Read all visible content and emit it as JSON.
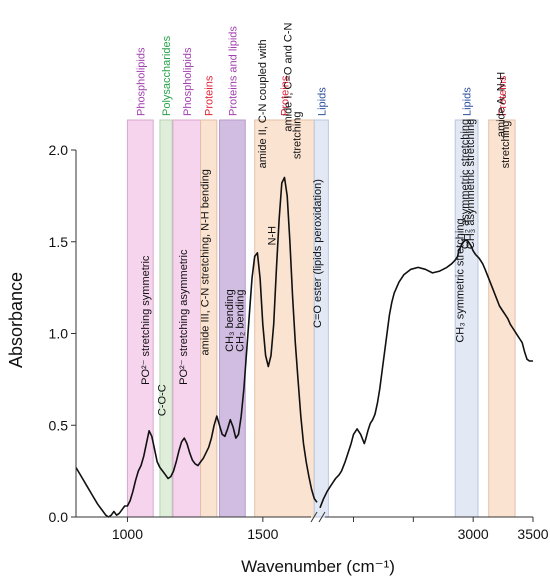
{
  "chart_data": {
    "type": "line",
    "title": "",
    "xlabel": "Wavenumber (cm⁻¹)",
    "ylabel": "Absorbance",
    "axis_break": [
      1700,
      1720
    ],
    "x_ticks": [
      1000,
      1500,
      2000,
      2500,
      3000,
      3500
    ],
    "x_ticks_labeled": [
      1000,
      1500,
      3000,
      3500
    ],
    "y_ticks": [
      0.0,
      0.5,
      1.0,
      1.5,
      2.0
    ],
    "y_tick_labels": [
      "0.0",
      "0.5",
      "1.0",
      "1.5",
      "2.0"
    ],
    "ylim": [
      0,
      2.0
    ],
    "segments": [
      {
        "xlim": [
          810,
          1700
        ],
        "x": [
          810,
          830,
          850,
          870,
          890,
          910,
          920,
          930,
          940,
          950,
          960,
          970,
          980,
          990,
          1000,
          1010,
          1020,
          1030,
          1040,
          1050,
          1060,
          1070,
          1080,
          1090,
          1100,
          1110,
          1120,
          1130,
          1140,
          1150,
          1160,
          1170,
          1180,
          1190,
          1200,
          1210,
          1220,
          1230,
          1240,
          1250,
          1260,
          1270,
          1280,
          1290,
          1300,
          1310,
          1320,
          1330,
          1340,
          1350,
          1360,
          1370,
          1380,
          1390,
          1400,
          1410,
          1420,
          1430,
          1440,
          1450,
          1460,
          1470,
          1480,
          1490,
          1500,
          1510,
          1520,
          1530,
          1540,
          1550,
          1560,
          1570,
          1580,
          1590,
          1600,
          1610,
          1620,
          1630,
          1640,
          1650,
          1660,
          1670,
          1680,
          1690,
          1700
        ],
        "y": [
          0.27,
          0.22,
          0.17,
          0.12,
          0.07,
          0.03,
          0.01,
          0.0,
          0.01,
          0.03,
          0.01,
          0.02,
          0.04,
          0.06,
          0.06,
          0.09,
          0.14,
          0.2,
          0.25,
          0.28,
          0.33,
          0.4,
          0.47,
          0.44,
          0.37,
          0.3,
          0.27,
          0.25,
          0.23,
          0.21,
          0.22,
          0.25,
          0.3,
          0.36,
          0.41,
          0.43,
          0.4,
          0.35,
          0.31,
          0.29,
          0.28,
          0.3,
          0.32,
          0.35,
          0.38,
          0.43,
          0.5,
          0.55,
          0.5,
          0.45,
          0.44,
          0.48,
          0.53,
          0.49,
          0.43,
          0.45,
          0.55,
          0.7,
          0.9,
          1.1,
          1.3,
          1.42,
          1.44,
          1.3,
          1.05,
          0.88,
          0.82,
          0.88,
          1.05,
          1.35,
          1.62,
          1.82,
          1.85,
          1.75,
          1.5,
          1.2,
          0.95,
          0.75,
          0.55,
          0.4,
          0.3,
          0.22,
          0.15,
          0.1,
          0.08
        ]
      },
      {
        "xlim": [
          1720,
          3500
        ],
        "x": [
          1720,
          1750,
          1780,
          1800,
          1830,
          1850,
          1880,
          1900,
          1930,
          1950,
          1980,
          2000,
          2030,
          2060,
          2090,
          2100,
          2120,
          2140,
          2160,
          2180,
          2200,
          2220,
          2240,
          2260,
          2280,
          2300,
          2320,
          2340,
          2380,
          2420,
          2480,
          2540,
          2600,
          2660,
          2720,
          2780,
          2820,
          2850,
          2870,
          2880,
          2900,
          2920,
          2940,
          2960,
          2980,
          3000,
          3020,
          3050,
          3080,
          3100,
          3130,
          3160,
          3190,
          3220,
          3250,
          3270,
          3290,
          3310,
          3330,
          3350,
          3370,
          3390,
          3410,
          3430,
          3450,
          3470,
          3500
        ],
        "y": [
          0.05,
          0.1,
          0.14,
          0.16,
          0.19,
          0.21,
          0.23,
          0.25,
          0.3,
          0.34,
          0.4,
          0.45,
          0.48,
          0.45,
          0.4,
          0.42,
          0.47,
          0.51,
          0.53,
          0.56,
          0.62,
          0.7,
          0.8,
          0.9,
          1.0,
          1.1,
          1.17,
          1.22,
          1.28,
          1.32,
          1.35,
          1.36,
          1.35,
          1.33,
          1.34,
          1.36,
          1.38,
          1.4,
          1.42,
          1.45,
          1.48,
          1.5,
          1.51,
          1.5,
          1.48,
          1.45,
          1.43,
          1.41,
          1.38,
          1.35,
          1.3,
          1.25,
          1.2,
          1.15,
          1.12,
          1.1,
          1.08,
          1.05,
          1.03,
          1.01,
          0.99,
          0.97,
          0.95,
          0.9,
          0.86,
          0.85,
          0.85
        ]
      }
    ],
    "bands": [
      {
        "x0": 1000,
        "x1": 1095,
        "color": "#f7d4ee",
        "edge": "#d8a9cf",
        "group": "Phospholipids",
        "group_color": "#a23fb0"
      },
      {
        "x0": 1120,
        "x1": 1165,
        "color": "#dfeeda",
        "edge": "#b9d3b0",
        "group": "Polysaccharides",
        "group_color": "#27a24b"
      },
      {
        "x0": 1168,
        "x1": 1270,
        "color": "#f7d4ee",
        "edge": "#d8a9cf",
        "group": "Phospholipids",
        "group_color": "#a23fb0"
      },
      {
        "x0": 1270,
        "x1": 1330,
        "color": "#fbe3d2",
        "edge": "#e4bfa6",
        "group": "Proteins",
        "group_color": "#e0243a"
      },
      {
        "x0": 1340,
        "x1": 1435,
        "color": "#d2bde2",
        "edge": "#b59acb",
        "group": "Proteins and lipids",
        "group_color": "#a23fb0"
      },
      {
        "x0": 1470,
        "x1": 1690,
        "color": "#fbe3d2",
        "edge": "#e4bfa6",
        "group": "Proteins",
        "group_color": "#e0243a"
      },
      {
        "x0": 1690,
        "x1": 1790,
        "color": "#e2e9f5",
        "edge": "#b9c7dd",
        "group": "Lipids",
        "group_color": "#2d4f9e"
      },
      {
        "x0": 2850,
        "x1": 3040,
        "color": "#e2e9f5",
        "edge": "#b9c7dd",
        "group": "Lipids",
        "group_color": "#2d4f9e"
      },
      {
        "x0": 3130,
        "x1": 3350,
        "color": "#fbe3d2",
        "edge": "#e4bfa6",
        "group": "Proteins",
        "group_color": "#e0243a"
      }
    ],
    "annotations": {
      "a1": {
        "text": "PO²⁻ stretching symmetric",
        "x": 1080,
        "y": 0.72
      },
      "a2": {
        "text": "C-O-C",
        "x": 1140,
        "y": 0.55
      },
      "a3": {
        "text": "PO²⁻ stretching asymmetric",
        "x": 1220,
        "y": 0.72
      },
      "a4": {
        "text": "amide III, C-N stretching, N-H bending",
        "x": 1300,
        "y": 0.88
      },
      "a5": {
        "text": "CH₃ bending",
        "x": 1390,
        "y": 0.9
      },
      "a6": {
        "text": "CH₂ bending",
        "x": 1428,
        "y": 0.9
      },
      "a7": {
        "text": "amide II, C-N coupled with",
        "x": 1512,
        "y": 1.9
      },
      "a8": {
        "text": "N-H",
        "x": 1547,
        "y": 1.48
      },
      "a9": {
        "text": "amide I, C=O and C-N",
        "x": 1605,
        "y": 2.1
      },
      "a10": {
        "text": "stretching",
        "x": 1640,
        "y": 1.95
      },
      "a11": {
        "text": "C=O ester (lipids peroxidation)",
        "x": 1730,
        "y": 1.03
      },
      "a12": {
        "text": "CH₃ symmetric stretching",
        "x": 2918,
        "y": 0.95
      },
      "a13": {
        "text": "CH₂ asymmetric stretching",
        "x": 2960,
        "y": 1.46
      },
      "a14": {
        "text": "CH₃ asymmetric stretching",
        "x": 3005,
        "y": 1.46
      },
      "a15": {
        "text": "amide A, N-H",
        "x": 3260,
        "y": 2.07
      },
      "a16": {
        "text": "stretching",
        "x": 3300,
        "y": 1.9
      }
    },
    "line_color": "#111111",
    "grid": false
  }
}
